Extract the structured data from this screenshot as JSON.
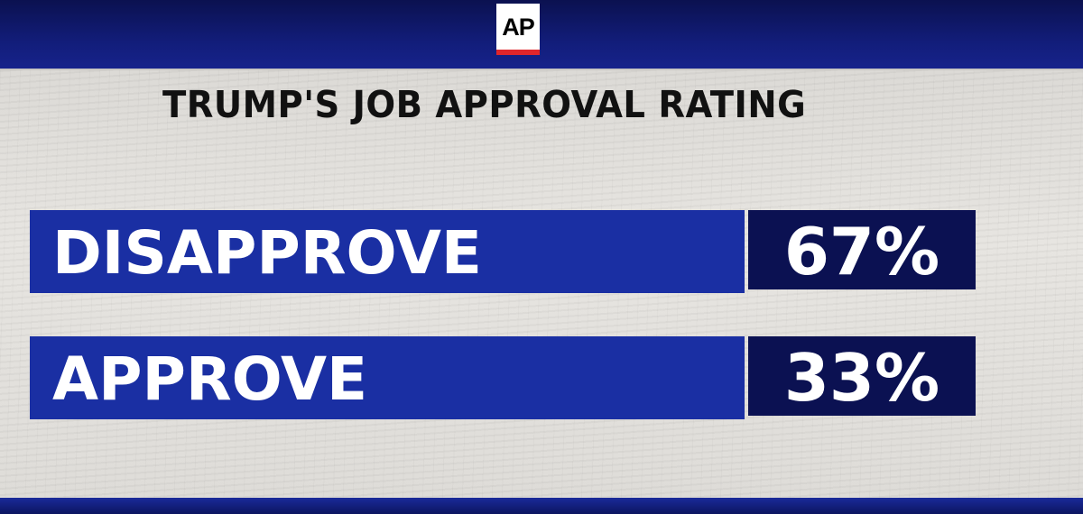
{
  "header": {
    "logo_text": "AP"
  },
  "chart_data": {
    "type": "bar",
    "orientation": "horizontal",
    "title": "TRUMP'S JOB APPROVAL RATING",
    "categories": [
      "DISAPPROVE",
      "APPROVE"
    ],
    "values": [
      67,
      33
    ],
    "value_labels": [
      "67%",
      "33%"
    ],
    "unit": "%",
    "colors": {
      "bar": "#1a2fa3",
      "value_box": "#0b1152",
      "text": "#ffffff",
      "title": "#111111",
      "logo_accent": "#e0262b"
    },
    "legend": "none",
    "grid": false
  }
}
